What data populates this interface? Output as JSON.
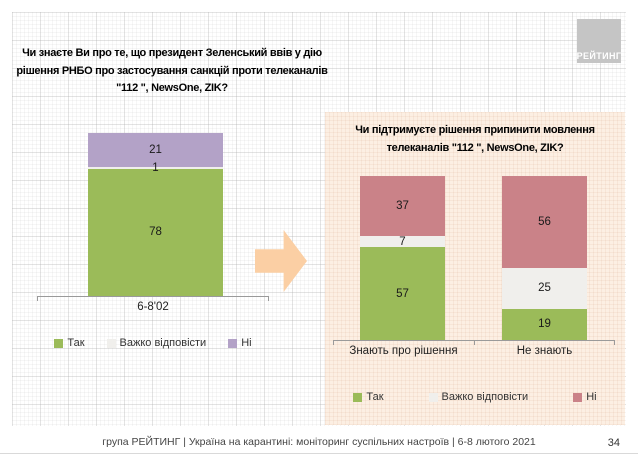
{
  "logo": {
    "text": "РЕЙТИНГ"
  },
  "footer": {
    "text": "група РЕЙТИНГ | Україна на карантині: моніторинг суспільних настроїв | 6-8 лютого 2021",
    "page_number": "34"
  },
  "colors": {
    "green": "#9bbb59",
    "neutral": "#f0efec",
    "purple": "#b3a2c7",
    "pink": "#ca8288",
    "arrow": "#fbcfa4",
    "panel_background": "#fcefe3",
    "logo_background": "#c5c5c5"
  },
  "chart_data": [
    {
      "type": "bar",
      "stacked": true,
      "title": "Чи знаєте Ви про те, що президент Зеленський ввів у дію рішення РНБО про застосування санкцій проти телеканалів \"112 \", NewsOne, ZIK?",
      "categories": [
        "6-8'02"
      ],
      "series": [
        {
          "name": "Так",
          "color": "#9bbb59",
          "values": [
            78
          ]
        },
        {
          "name": "Важко відповісти",
          "color": "#f0efec",
          "values": [
            1
          ]
        },
        {
          "name": "Ні",
          "color": "#b3a2c7",
          "values": [
            21
          ]
        }
      ],
      "ylim": [
        0,
        100
      ],
      "legend_position": "bottom",
      "value_labels": true
    },
    {
      "type": "bar",
      "stacked": true,
      "title": "Чи підтримуєте рішення припинити мовлення телеканалів \"112 \", NewsOne, ZIK?",
      "categories": [
        "Знають про рішення",
        "Не знають"
      ],
      "series": [
        {
          "name": "Так",
          "color": "#9bbb59",
          "values": [
            57,
            19
          ]
        },
        {
          "name": "Важко відповісти",
          "color": "#f0efec",
          "values": [
            7,
            25
          ]
        },
        {
          "name": "Ні",
          "color": "#ca8288",
          "values": [
            37,
            56
          ]
        }
      ],
      "ylim": [
        0,
        100
      ],
      "legend_position": "bottom",
      "value_labels": true
    }
  ]
}
